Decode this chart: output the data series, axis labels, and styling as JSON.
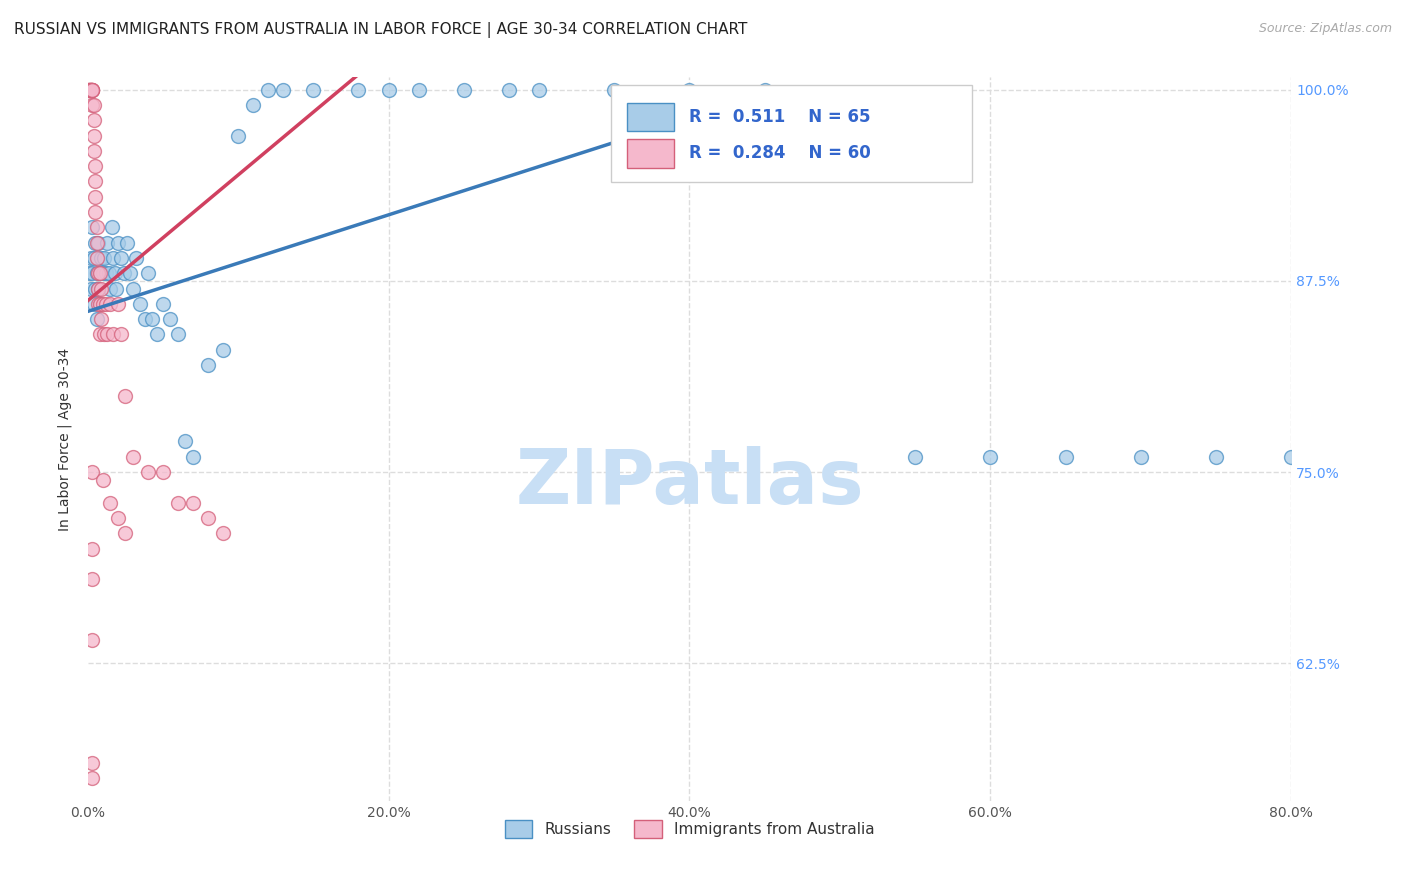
{
  "title": "RUSSIAN VS IMMIGRANTS FROM AUSTRALIA IN LABOR FORCE | AGE 30-34 CORRELATION CHART",
  "source": "Source: ZipAtlas.com",
  "ylabel": "In Labor Force | Age 30-34",
  "xlim": [
    0.0,
    0.8
  ],
  "ylim": [
    0.535,
    1.008
  ],
  "xtick_labels": [
    "0.0%",
    "20.0%",
    "40.0%",
    "60.0%",
    "80.0%"
  ],
  "xtick_values": [
    0.0,
    0.2,
    0.4,
    0.6,
    0.8
  ],
  "ytick_labels": [
    "62.5%",
    "75.0%",
    "87.5%",
    "100.0%"
  ],
  "ytick_values": [
    0.625,
    0.75,
    0.875,
    1.0
  ],
  "grid_color": "#dddddd",
  "background_color": "#ffffff",
  "watermark": "ZIPatlas",
  "watermark_color": "#c8dff5",
  "title_fontsize": 11,
  "source_fontsize": 9,
  "legend_r_blue": "0.511",
  "legend_n_blue": "65",
  "legend_r_pink": "0.284",
  "legend_n_pink": "60",
  "blue_fill": "#a8cce8",
  "blue_edge": "#4a90c4",
  "pink_fill": "#f5b8cc",
  "pink_edge": "#d4607a",
  "blue_line": "#3a7ab8",
  "pink_line": "#d04060",
  "legend_text_color": "#3366cc",
  "right_tick_color": "#5599ff",
  "russians_x": [
    0.001,
    0.002,
    0.002,
    0.003,
    0.003,
    0.004,
    0.004,
    0.005,
    0.005,
    0.006,
    0.006,
    0.007,
    0.007,
    0.008,
    0.008,
    0.009,
    0.01,
    0.011,
    0.012,
    0.013,
    0.014,
    0.015,
    0.016,
    0.017,
    0.018,
    0.019,
    0.02,
    0.022,
    0.024,
    0.026,
    0.028,
    0.03,
    0.032,
    0.035,
    0.038,
    0.04,
    0.043,
    0.046,
    0.05,
    0.055,
    0.06,
    0.065,
    0.07,
    0.08,
    0.09,
    0.1,
    0.11,
    0.12,
    0.13,
    0.15,
    0.18,
    0.2,
    0.22,
    0.25,
    0.28,
    0.3,
    0.35,
    0.4,
    0.45,
    0.55,
    0.6,
    0.65,
    0.7,
    0.75,
    0.8
  ],
  "russians_y": [
    0.88,
    0.89,
    0.87,
    0.91,
    0.88,
    0.89,
    0.86,
    0.9,
    0.87,
    0.88,
    0.85,
    0.9,
    0.87,
    0.88,
    0.86,
    0.89,
    0.88,
    0.89,
    0.88,
    0.9,
    0.88,
    0.87,
    0.91,
    0.89,
    0.88,
    0.87,
    0.9,
    0.89,
    0.88,
    0.9,
    0.88,
    0.87,
    0.89,
    0.86,
    0.85,
    0.88,
    0.85,
    0.84,
    0.86,
    0.85,
    0.84,
    0.77,
    0.76,
    0.82,
    0.83,
    0.97,
    0.99,
    1.0,
    1.0,
    1.0,
    1.0,
    1.0,
    1.0,
    1.0,
    1.0,
    1.0,
    1.0,
    1.0,
    1.0,
    0.76,
    0.76,
    0.76,
    0.76,
    0.76,
    0.76
  ],
  "immigrants_x": [
    0.001,
    0.001,
    0.001,
    0.001,
    0.001,
    0.002,
    0.002,
    0.002,
    0.002,
    0.002,
    0.003,
    0.003,
    0.003,
    0.003,
    0.003,
    0.004,
    0.004,
    0.004,
    0.004,
    0.005,
    0.005,
    0.005,
    0.005,
    0.006,
    0.006,
    0.006,
    0.007,
    0.007,
    0.007,
    0.008,
    0.008,
    0.008,
    0.009,
    0.009,
    0.01,
    0.011,
    0.012,
    0.013,
    0.015,
    0.017,
    0.02,
    0.022,
    0.025,
    0.03,
    0.04,
    0.05,
    0.06,
    0.07,
    0.08,
    0.09,
    0.003,
    0.01,
    0.015,
    0.02,
    0.025,
    0.003,
    0.003,
    0.003,
    0.003,
    0.003
  ],
  "immigrants_y": [
    1.0,
    1.0,
    1.0,
    1.0,
    1.0,
    1.0,
    1.0,
    1.0,
    1.0,
    1.0,
    1.0,
    1.0,
    1.0,
    1.0,
    0.99,
    0.99,
    0.98,
    0.97,
    0.96,
    0.95,
    0.94,
    0.93,
    0.92,
    0.91,
    0.9,
    0.89,
    0.88,
    0.87,
    0.86,
    0.88,
    0.86,
    0.84,
    0.87,
    0.85,
    0.86,
    0.84,
    0.86,
    0.84,
    0.86,
    0.84,
    0.86,
    0.84,
    0.8,
    0.76,
    0.75,
    0.75,
    0.73,
    0.73,
    0.72,
    0.71,
    0.75,
    0.745,
    0.73,
    0.72,
    0.71,
    0.7,
    0.68,
    0.64,
    0.56,
    0.55
  ]
}
